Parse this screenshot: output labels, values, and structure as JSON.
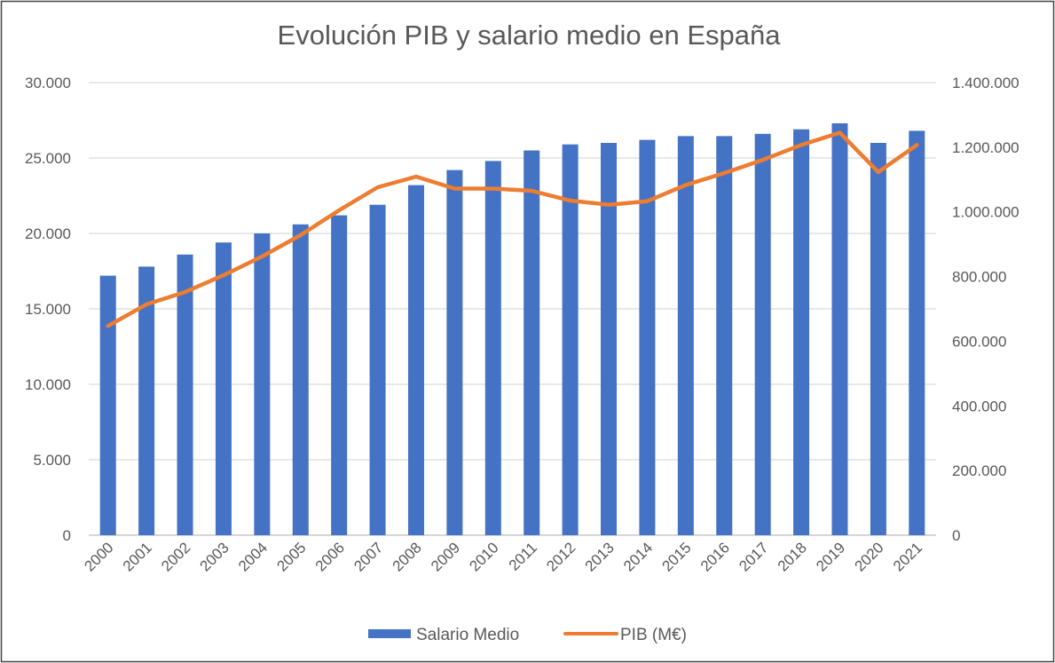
{
  "chart_data": {
    "type": "bar+line",
    "title": "Evolución PIB y salario medio en España",
    "categories": [
      "2000",
      "2001",
      "2002",
      "2003",
      "2004",
      "2005",
      "2006",
      "2007",
      "2008",
      "2009",
      "2010",
      "2011",
      "2012",
      "2013",
      "2014",
      "2015",
      "2016",
      "2017",
      "2018",
      "2019",
      "2020",
      "2021"
    ],
    "series": [
      {
        "name": "Salario Medio",
        "type": "bar",
        "axis": "left",
        "color": "#4472C4",
        "values": [
          17200,
          17800,
          18600,
          19400,
          20000,
          20600,
          21200,
          21900,
          23200,
          24200,
          24800,
          25500,
          25900,
          26000,
          26200,
          26450,
          26450,
          26600,
          26900,
          27300,
          26000,
          26800
        ]
      },
      {
        "name": "PIB (M€)",
        "type": "line",
        "axis": "right",
        "color": "#ED7D31",
        "values": [
          647000,
          714000,
          752000,
          804000,
          862000,
          928000,
          1005000,
          1076000,
          1109000,
          1072000,
          1072000,
          1065000,
          1035000,
          1022000,
          1033000,
          1083000,
          1120000,
          1161000,
          1207000,
          1245000,
          1123000,
          1207000
        ]
      }
    ],
    "left_axis": {
      "ylim": [
        0,
        30000
      ],
      "ticks": [
        "0",
        "5.000",
        "10.000",
        "15.000",
        "20.000",
        "25.000",
        "30.000"
      ]
    },
    "right_axis": {
      "ylim": [
        0,
        1400000
      ],
      "ticks": [
        "0",
        "200.000",
        "400.000",
        "600.000",
        "800.000",
        "1.000.000",
        "1.200.000",
        "1.400.000"
      ]
    },
    "grid": true,
    "legend": "bottom"
  }
}
